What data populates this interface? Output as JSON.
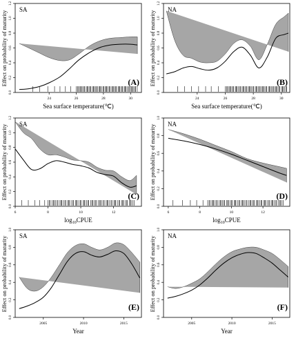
{
  "figure": {
    "ylabel": "Effect on probability of maturity"
  },
  "chart_data": [
    {
      "id": "A",
      "type": "line",
      "region_label": "SA",
      "panel_tag": "(A)",
      "xlabel": "Sea surface temperature(℃)",
      "xlim": [
        21.5,
        30.8
      ],
      "ylim": [
        0,
        1.2
      ],
      "xticks": [
        24,
        26,
        28,
        30
      ],
      "yticks": [
        0.0,
        0.2,
        0.4,
        0.6,
        0.8,
        1.0,
        1.2
      ],
      "series": [
        {
          "x": [
            21.8,
            22.5,
            23.3,
            24.0,
            24.8,
            25.5,
            26.2,
            27.0,
            27.8,
            28.5,
            29.2,
            30.0,
            30.5
          ],
          "y": [
            0.04,
            0.05,
            0.08,
            0.13,
            0.21,
            0.32,
            0.44,
            0.54,
            0.61,
            0.64,
            0.65,
            0.65,
            0.64
          ],
          "upper": [
            0.66,
            0.6,
            0.53,
            0.47,
            0.43,
            0.44,
            0.52,
            0.63,
            0.7,
            0.73,
            0.74,
            0.75,
            0.75
          ],
          "lower": [
            0.0,
            0.0,
            0.0,
            0.0,
            0.07,
            0.18,
            0.33,
            0.44,
            0.51,
            0.55,
            0.56,
            0.55,
            0.52
          ]
        }
      ],
      "rug": {
        "dense_from": 26.0,
        "dense_to": 30.5,
        "sparse": [
          22.8,
          23.3,
          23.9,
          24.4,
          24.8,
          25.2,
          25.6
        ]
      }
    },
    {
      "id": "B",
      "type": "line",
      "region_label": "NA",
      "panel_tag": "(B)",
      "xlabel": "Sea surface temperature(℃)",
      "xlim": [
        21.6,
        30.6
      ],
      "ylim": [
        0,
        1.2
      ],
      "xticks": [
        24,
        26,
        28,
        30
      ],
      "yticks": [
        0.0,
        0.2,
        0.4,
        0.6,
        0.8,
        1.0,
        1.2
      ],
      "series": [
        {
          "x": [
            21.8,
            22.4,
            23.0,
            23.6,
            24.2,
            24.8,
            25.4,
            26.0,
            26.6,
            27.2,
            27.8,
            28.4,
            29.0,
            29.6,
            30.2,
            30.5
          ],
          "y": [
            0.25,
            0.28,
            0.33,
            0.35,
            0.32,
            0.3,
            0.33,
            0.42,
            0.55,
            0.61,
            0.5,
            0.33,
            0.48,
            0.73,
            0.78,
            0.8
          ],
          "upper": [
            1.1,
            0.7,
            0.5,
            0.46,
            0.41,
            0.4,
            0.42,
            0.52,
            0.66,
            0.71,
            0.62,
            0.44,
            0.65,
            0.92,
            1.02,
            1.07
          ],
          "lower": [
            0.0,
            0.05,
            0.15,
            0.24,
            0.23,
            0.21,
            0.24,
            0.32,
            0.44,
            0.5,
            0.38,
            0.22,
            0.3,
            0.55,
            0.55,
            0.55
          ]
        }
      ],
      "rug": {
        "dense_from": 26.0,
        "dense_to": 30.4,
        "sparse": [
          22.6,
          23.1,
          23.6,
          24.1,
          24.6,
          25.0,
          25.5
        ]
      }
    },
    {
      "id": "C",
      "type": "line",
      "region_label": "SA",
      "panel_tag": "(C)",
      "xlabel": "log10CPUE",
      "xlim": [
        6.0,
        13.7
      ],
      "ylim": [
        0,
        1.2
      ],
      "xticks": [
        6,
        8,
        10,
        12
      ],
      "yticks": [
        0.0,
        0.2,
        0.4,
        0.6,
        0.8,
        1.0,
        1.2
      ],
      "series": [
        {
          "x": [
            6.0,
            6.5,
            7.0,
            7.5,
            8.0,
            8.5,
            9.0,
            9.5,
            10.0,
            10.5,
            11.0,
            11.5,
            12.0,
            12.5,
            13.0,
            13.4
          ],
          "y": [
            0.78,
            0.63,
            0.5,
            0.51,
            0.58,
            0.62,
            0.6,
            0.57,
            0.55,
            0.52,
            0.46,
            0.43,
            0.41,
            0.32,
            0.26,
            0.28
          ],
          "upper": [
            1.15,
            1.0,
            0.92,
            0.78,
            0.7,
            0.7,
            0.67,
            0.63,
            0.62,
            0.6,
            0.53,
            0.49,
            0.48,
            0.4,
            0.35,
            0.42
          ],
          "lower": [
            0.1,
            0.13,
            0.1,
            0.18,
            0.4,
            0.52,
            0.53,
            0.5,
            0.47,
            0.44,
            0.39,
            0.36,
            0.33,
            0.24,
            0.19,
            0.16
          ]
        }
      ],
      "rug": {
        "dense_from": 8.0,
        "dense_to": 13.3,
        "sparse": [
          6.4,
          6.8,
          7.2,
          7.5,
          7.8
        ]
      }
    },
    {
      "id": "D",
      "type": "line",
      "region_label": "NA",
      "panel_tag": "(D)",
      "xlabel": "log10CPUE",
      "xlim": [
        5.7,
        13.7
      ],
      "ylim": [
        0,
        1.0
      ],
      "xticks": [
        6,
        8,
        10,
        12
      ],
      "yticks": [
        0.0,
        0.2,
        0.4,
        0.6,
        0.8,
        1.0
      ],
      "series": [
        {
          "x": [
            6.0,
            7.0,
            8.0,
            9.0,
            10.0,
            11.0,
            12.0,
            13.0,
            13.5
          ],
          "y": [
            0.77,
            0.74,
            0.7,
            0.65,
            0.59,
            0.52,
            0.45,
            0.38,
            0.35
          ],
          "upper": [
            0.87,
            0.82,
            0.76,
            0.69,
            0.62,
            0.54,
            0.49,
            0.45,
            0.43
          ],
          "lower": [
            0.67,
            0.66,
            0.64,
            0.61,
            0.56,
            0.5,
            0.41,
            0.31,
            0.27
          ]
        }
      ],
      "rug": {
        "dense_from": 8.5,
        "dense_to": 13.3,
        "sparse": [
          6.3,
          6.9,
          7.4,
          7.8,
          8.2
        ]
      }
    },
    {
      "id": "E",
      "type": "line",
      "region_label": "SA",
      "panel_tag": "(E)",
      "xlabel": "Year",
      "xlim": [
        2001.5,
        2017.2
      ],
      "ylim": [
        0,
        1.0
      ],
      "xticks": [
        2005,
        2010,
        2015
      ],
      "yticks": [
        0.0,
        0.2,
        0.4,
        0.6,
        0.8,
        1.0
      ],
      "series": [
        {
          "x": [
            2002,
            2003,
            2004,
            2005,
            2006,
            2007,
            2008,
            2009,
            2010,
            2011,
            2012,
            2013,
            2014,
            2015,
            2016,
            2017
          ],
          "y": [
            0.1,
            0.13,
            0.17,
            0.23,
            0.34,
            0.49,
            0.64,
            0.73,
            0.75,
            0.71,
            0.69,
            0.72,
            0.76,
            0.73,
            0.61,
            0.45
          ],
          "upper": [
            0.46,
            0.33,
            0.3,
            0.35,
            0.46,
            0.6,
            0.74,
            0.82,
            0.84,
            0.8,
            0.77,
            0.8,
            0.85,
            0.83,
            0.74,
            0.63
          ],
          "lower": [
            0.0,
            0.03,
            0.07,
            0.13,
            0.23,
            0.37,
            0.53,
            0.63,
            0.65,
            0.61,
            0.6,
            0.64,
            0.67,
            0.62,
            0.48,
            0.28
          ]
        }
      ]
    },
    {
      "id": "F",
      "type": "line",
      "region_label": "NA",
      "panel_tag": "(F)",
      "xlabel": "Year",
      "xlim": [
        2001.5,
        2017.2
      ],
      "ylim": [
        0,
        1.0
      ],
      "xticks": [
        2005,
        2010,
        2015
      ],
      "yticks": [
        0.0,
        0.2,
        0.4,
        0.6,
        0.8,
        1.0
      ],
      "series": [
        {
          "x": [
            2002,
            2003,
            2004,
            2005,
            2006,
            2007,
            2008,
            2009,
            2010,
            2011,
            2012,
            2013,
            2014,
            2015,
            2016,
            2017
          ],
          "y": [
            0.22,
            0.24,
            0.27,
            0.31,
            0.37,
            0.45,
            0.54,
            0.62,
            0.68,
            0.72,
            0.74,
            0.73,
            0.68,
            0.62,
            0.54,
            0.46
          ],
          "upper": [
            0.35,
            0.33,
            0.35,
            0.39,
            0.44,
            0.52,
            0.61,
            0.69,
            0.75,
            0.78,
            0.8,
            0.8,
            0.77,
            0.73,
            0.66,
            0.58
          ],
          "lower": [
            0.1,
            0.15,
            0.19,
            0.23,
            0.3,
            0.38,
            0.47,
            0.55,
            0.61,
            0.66,
            0.68,
            0.66,
            0.59,
            0.51,
            0.42,
            0.34
          ]
        }
      ]
    }
  ]
}
